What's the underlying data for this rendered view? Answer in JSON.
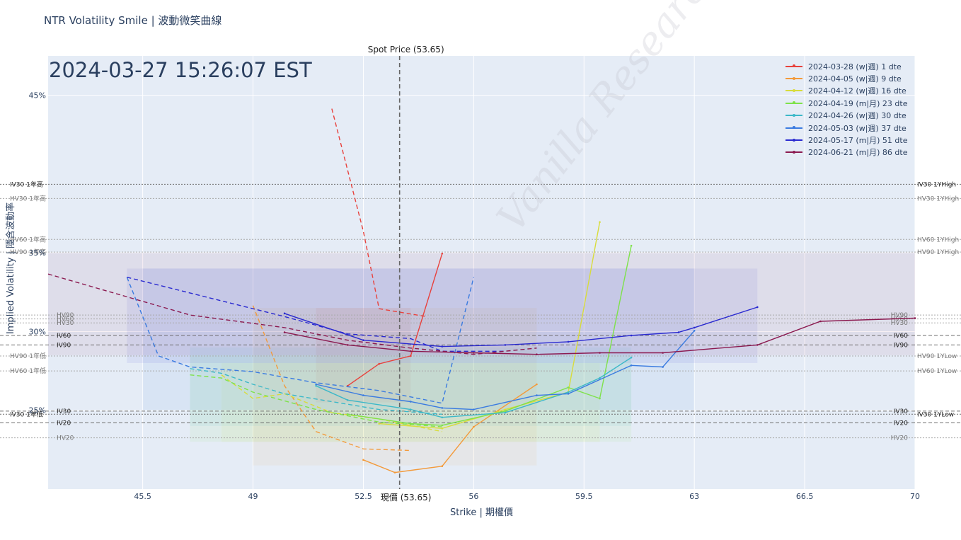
{
  "title": "NTR Volatility Smile | 波動微笑曲線",
  "timestamp": "2024-03-27 15:26:07 EST",
  "watermark": "Vanilla Research",
  "colors": {
    "plot_bg": "#e5ecf6",
    "axis_text": "#2a3f5f",
    "ref_line": "#8a8a8a"
  },
  "chart_data": {
    "type": "line",
    "title": "NTR Volatility Smile | 波動微笑曲線",
    "xlabel": "Strike | 期權價",
    "ylabel": "Implied Volatility | 隱含波動率",
    "xlim": [
      42.5,
      70
    ],
    "ylim": [
      0.2,
      0.475
    ],
    "x_ticks": [
      45.5,
      49,
      52.5,
      56,
      59.5,
      63,
      66.5,
      70
    ],
    "x_tick_labels": [
      "45.5",
      "49",
      "52.5",
      "56",
      "59.5",
      "63",
      "66.5",
      "70"
    ],
    "y_ticks": [
      0.25,
      0.3,
      0.35,
      0.45
    ],
    "y_tick_labels": [
      "25%",
      "30%",
      "35%",
      "45%"
    ],
    "grid": true,
    "legend_position": "top-right",
    "spot": {
      "value": 53.65,
      "label_top": "Spot Price (53.65)",
      "label_bottom": "現價 (53.65)"
    },
    "series": [
      {
        "name": "2024-03-28 (w|週) 1 dte",
        "color": "#e8413c",
        "solid": [
          [
            52,
            0.2655
          ],
          [
            53,
            0.2795
          ],
          [
            54,
            0.2845
          ],
          [
            55,
            0.3495
          ]
        ],
        "dashed": [
          [
            51.5,
            0.4415
          ],
          [
            52.5,
            0.3635
          ],
          [
            53,
            0.3145
          ],
          [
            54.5,
            0.3095
          ]
        ],
        "band": [
          [
            51,
            0.315
          ],
          [
            54,
            0.255
          ]
        ]
      },
      {
        "name": "2024-04-05 (w|週) 9 dte",
        "color": "#f39a3a",
        "solid": [
          [
            52.5,
            0.2185
          ],
          [
            53.5,
            0.2105
          ],
          [
            55,
            0.2145
          ],
          [
            56,
            0.2395
          ],
          [
            58,
            0.2665
          ]
        ],
        "dashed": [
          [
            49,
            0.3165
          ],
          [
            50,
            0.2655
          ],
          [
            51,
            0.2365
          ],
          [
            52.5,
            0.2255
          ],
          [
            54,
            0.2245
          ]
        ],
        "band": [
          [
            49,
            0.315
          ],
          [
            58,
            0.215
          ]
        ]
      },
      {
        "name": "2024-04-12 (w|週) 16 dte",
        "color": "#d8dc3c",
        "solid": [
          [
            53,
            0.2415
          ],
          [
            55,
            0.2385
          ],
          [
            57,
            0.2505
          ],
          [
            59,
            0.2615
          ],
          [
            60,
            0.3695
          ]
        ],
        "dashed": [
          [
            48,
            0.2725
          ],
          [
            49,
            0.2575
          ],
          [
            50,
            0.2605
          ],
          [
            51.5,
            0.2485
          ],
          [
            53,
            0.2445
          ],
          [
            55,
            0.2365
          ]
        ],
        "band": [
          [
            48,
            0.28
          ],
          [
            60,
            0.23
          ]
        ]
      },
      {
        "name": "2024-04-19 (m|月) 23 dte",
        "color": "#7ee24a",
        "solid": [
          [
            52,
            0.2475
          ],
          [
            54,
            0.2415
          ],
          [
            55,
            0.2405
          ],
          [
            57,
            0.2495
          ],
          [
            59,
            0.2645
          ],
          [
            60,
            0.2575
          ],
          [
            61,
            0.3545
          ]
        ],
        "dashed": [
          [
            47,
            0.2725
          ],
          [
            48,
            0.2705
          ],
          [
            49,
            0.2615
          ],
          [
            51,
            0.2505
          ],
          [
            53,
            0.2425
          ],
          [
            55,
            0.2395
          ]
        ],
        "band": [
          [
            47,
            0.285
          ],
          [
            61,
            0.23
          ]
        ]
      },
      {
        "name": "2024-04-26 (w|週) 30 dte",
        "color": "#3cb8c8",
        "solid": [
          [
            51,
            0.2655
          ],
          [
            52,
            0.2565
          ],
          [
            54,
            0.2505
          ],
          [
            55,
            0.2455
          ],
          [
            57,
            0.2485
          ],
          [
            59,
            0.2615
          ],
          [
            60,
            0.2705
          ],
          [
            61,
            0.2835
          ]
        ],
        "dashed": [
          [
            47,
            0.2765
          ],
          [
            48,
            0.2735
          ],
          [
            49,
            0.2665
          ],
          [
            50,
            0.2605
          ],
          [
            51.5,
            0.2555
          ],
          [
            53,
            0.2505
          ],
          [
            55,
            0.2475
          ]
        ],
        "band": [
          [
            47,
            0.29
          ],
          [
            61,
            0.24
          ]
        ]
      },
      {
        "name": "2024-05-03 (w|週) 37 dte",
        "color": "#3a7be0",
        "solid": [
          [
            51,
            0.2665
          ],
          [
            52.5,
            0.2595
          ],
          [
            54,
            0.2555
          ],
          [
            55,
            0.2515
          ],
          [
            56,
            0.2505
          ],
          [
            58,
            0.2595
          ],
          [
            59,
            0.2605
          ],
          [
            61,
            0.2785
          ],
          [
            62,
            0.2775
          ],
          [
            63,
            0.3005
          ]
        ],
        "dashed": [
          [
            45,
            0.3345
          ],
          [
            46,
            0.2845
          ],
          [
            47,
            0.2775
          ],
          [
            49,
            0.2745
          ],
          [
            51,
            0.2675
          ],
          [
            53,
            0.2625
          ],
          [
            55,
            0.2545
          ],
          [
            56,
            0.3345
          ]
        ],
        "band": [
          [
            45.5,
            0.34
          ],
          [
            63,
            0.25
          ]
        ]
      },
      {
        "name": "2024-05-17 (m|月) 51 dte",
        "color": "#2a2ad0",
        "solid": [
          [
            50,
            0.3115
          ],
          [
            52.5,
            0.2945
          ],
          [
            55,
            0.2905
          ],
          [
            57,
            0.2915
          ],
          [
            59,
            0.2935
          ],
          [
            61,
            0.2975
          ],
          [
            62.5,
            0.2995
          ],
          [
            63,
            0.3025
          ],
          [
            65,
            0.3155
          ]
        ],
        "dashed": [
          [
            45,
            0.3345
          ],
          [
            48,
            0.3195
          ],
          [
            50,
            0.3095
          ],
          [
            52,
            0.2985
          ],
          [
            54,
            0.2955
          ],
          [
            55,
            0.2875
          ],
          [
            57,
            0.2875
          ]
        ],
        "band": [
          [
            45,
            0.34
          ],
          [
            65,
            0.28
          ]
        ]
      },
      {
        "name": "2024-06-21 (m|月) 86 dte",
        "color": "#8b1a50",
        "solid": [
          [
            50,
            0.2995
          ],
          [
            52,
            0.2915
          ],
          [
            54,
            0.2875
          ],
          [
            56,
            0.2865
          ],
          [
            58,
            0.2855
          ],
          [
            60,
            0.2865
          ],
          [
            62,
            0.2865
          ],
          [
            65,
            0.2915
          ],
          [
            67,
            0.3065
          ],
          [
            70,
            0.3085
          ]
        ],
        "dashed": [
          [
            42.5,
            0.3365
          ],
          [
            47,
            0.3105
          ],
          [
            50,
            0.3025
          ],
          [
            52,
            0.2945
          ],
          [
            54,
            0.2895
          ],
          [
            56,
            0.2855
          ],
          [
            58,
            0.2895
          ]
        ],
        "band": [
          [
            42.5,
            0.35
          ],
          [
            70,
            0.285
          ]
        ]
      }
    ],
    "reference_lines": [
      {
        "value": 0.3935,
        "left": "IV30 1年高",
        "right": "IV30 1YHigh",
        "style": "dot",
        "dark": true
      },
      {
        "value": 0.3845,
        "left": "HV30 1年高",
        "right": "HV30 1YHigh",
        "style": "dot"
      },
      {
        "value": 0.3585,
        "left": "HV60 1年高",
        "right": "HV60 1YHigh",
        "style": "dot"
      },
      {
        "value": 0.3505,
        "left": "HV90 1年高",
        "right": "HV90 1YHigh",
        "style": "dot"
      },
      {
        "value": 0.3105,
        "left": "HV90",
        "right": "HV90",
        "style": "dot",
        "inner": true
      },
      {
        "value": 0.308,
        "left": "HV60",
        "right": "HV60",
        "style": "dot",
        "inner": true
      },
      {
        "value": 0.3055,
        "left": "HV30",
        "right": "HV30",
        "style": "dot",
        "inner": true
      },
      {
        "value": 0.2975,
        "left": "IV60",
        "right": "IV60",
        "style": "dash",
        "inner": true,
        "dark": true
      },
      {
        "value": 0.2915,
        "left": "IV90",
        "right": "IV90",
        "style": "dash",
        "inner": true,
        "dark": true
      },
      {
        "value": 0.2845,
        "left": "HV90 1年低",
        "right": "HV90 1YLow",
        "style": "dot"
      },
      {
        "value": 0.275,
        "left": "HV60 1年低",
        "right": "HV60 1YLow",
        "style": "dot"
      },
      {
        "value": 0.2495,
        "left": "IV30",
        "right": "IV30",
        "style": "dash",
        "inner": true,
        "dark": true
      },
      {
        "value": 0.2475,
        "left": "IV30 1年低",
        "right": "IV30 1YLow",
        "style": "dot",
        "dark": true
      },
      {
        "value": 0.242,
        "left": "IV20",
        "right": "IV20",
        "style": "dash",
        "inner": true,
        "dark": true
      },
      {
        "value": 0.2325,
        "left": "HV20",
        "right": "HV20",
        "style": "dot",
        "inner": true
      }
    ]
  }
}
